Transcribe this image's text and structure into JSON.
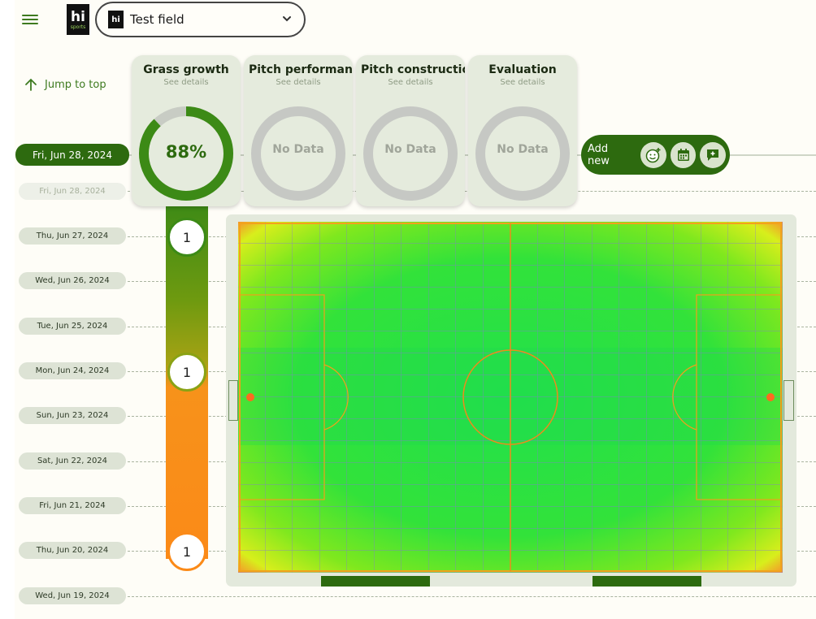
{
  "header": {
    "logo_text": "hi",
    "logo_sub": "sports",
    "field_name": "Test field"
  },
  "nav": {
    "jump_label": "Jump to top"
  },
  "selected_date": "Fri, Jun 28, 2024",
  "dates": [
    "Fri, Jun 28, 2024",
    "Thu, Jun 27, 2024",
    "Wed, Jun 26, 2024",
    "Tue, Jun 25, 2024",
    "Mon, Jun 24, 2024",
    "Sun, Jun 23, 2024",
    "Sat, Jun 22, 2024",
    "Fri, Jun 21, 2024",
    "Thu, Jun 20, 2024",
    "Wed, Jun 19, 2024"
  ],
  "cards": [
    {
      "title": "Grass growth",
      "sub": "See details",
      "value": "88%",
      "percent": 88
    },
    {
      "title": "Pitch performance",
      "sub": "See details",
      "value": "No Data"
    },
    {
      "title": "Pitch construction",
      "sub": "See details",
      "value": "No Data"
    },
    {
      "title": "Evaluation",
      "sub": "See details",
      "value": "No Data"
    }
  ],
  "add_new": {
    "label": "Add new",
    "icons": [
      "emoji-add-icon",
      "calendar-icon",
      "comment-add-icon"
    ]
  },
  "counts": [
    {
      "value": "1",
      "color": "#3c8a16"
    },
    {
      "value": "1",
      "color": "#8aa214"
    },
    {
      "value": "1",
      "color": "#fb8a18"
    }
  ],
  "colors": {
    "primary": "#2d6a0f",
    "pill": "#dde3d5",
    "orange": "#fb8a18"
  }
}
